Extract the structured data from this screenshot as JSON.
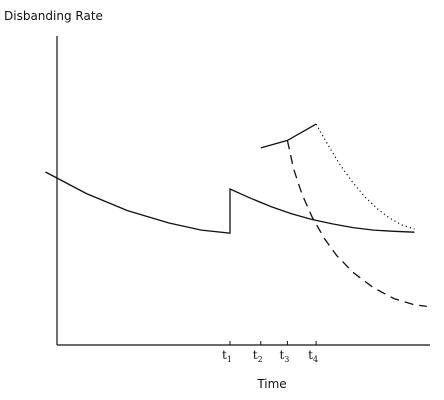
{
  "chart_data": {
    "type": "line",
    "title": "",
    "ylabel": "Disbanding Rate",
    "xlabel": "Time",
    "xlim": [
      0,
      10
    ],
    "ylim": [
      0,
      10
    ],
    "grid": false,
    "y_tick_labels": false,
    "x_ticks": [
      {
        "base": "t",
        "sub": "1",
        "x": 5.0
      },
      {
        "base": "t",
        "sub": "2",
        "x": 5.75
      },
      {
        "base": "t",
        "sub": "3",
        "x": 6.4
      },
      {
        "base": "t",
        "sub": "4",
        "x": 7.1
      }
    ],
    "series": [
      {
        "style": "solid",
        "points": [
          [
            0.5,
            5.6
          ],
          [
            1.5,
            4.9
          ],
          [
            2.5,
            4.35
          ],
          [
            3.5,
            3.95
          ],
          [
            4.3,
            3.72
          ],
          [
            5.0,
            3.62
          ],
          [
            5.0,
            5.05
          ],
          [
            5.5,
            4.75
          ],
          [
            6.0,
            4.48
          ],
          [
            6.5,
            4.25
          ],
          [
            7.0,
            4.06
          ],
          [
            7.5,
            3.92
          ],
          [
            8.0,
            3.8
          ],
          [
            8.5,
            3.72
          ],
          [
            9.0,
            3.68
          ],
          [
            9.5,
            3.65
          ]
        ]
      },
      {
        "style": "solid",
        "points": [
          [
            5.75,
            6.38
          ],
          [
            6.4,
            6.62
          ],
          [
            7.1,
            7.15
          ]
        ]
      },
      {
        "style": "dashed",
        "points": [
          [
            6.4,
            6.62
          ],
          [
            6.55,
            5.7
          ],
          [
            6.75,
            4.9
          ],
          [
            7.0,
            4.15
          ],
          [
            7.3,
            3.45
          ],
          [
            7.6,
            2.9
          ],
          [
            8.0,
            2.35
          ],
          [
            8.5,
            1.85
          ],
          [
            9.0,
            1.5
          ],
          [
            9.5,
            1.3
          ],
          [
            9.8,
            1.25
          ]
        ]
      },
      {
        "style": "dotted",
        "points": [
          [
            7.1,
            7.15
          ],
          [
            7.4,
            6.45
          ],
          [
            7.7,
            5.8
          ],
          [
            8.0,
            5.25
          ],
          [
            8.3,
            4.78
          ],
          [
            8.6,
            4.4
          ],
          [
            8.9,
            4.1
          ],
          [
            9.2,
            3.88
          ],
          [
            9.5,
            3.75
          ]
        ]
      }
    ]
  }
}
